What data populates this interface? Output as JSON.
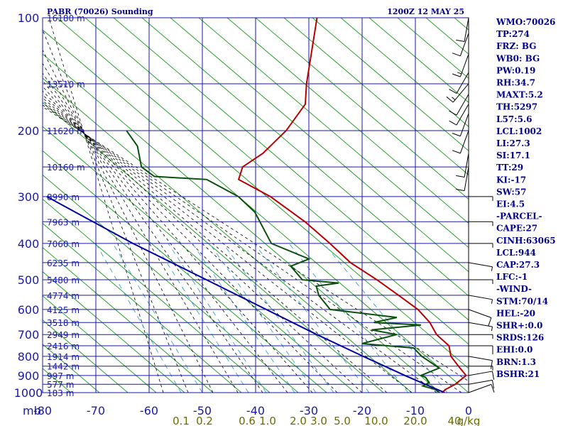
{
  "header": {
    "title": "PABR (70026) Sounding",
    "time": "1200Z 12 MAY 25"
  },
  "colors": {
    "grid": "#1a1aa8",
    "temperature": "#b80000",
    "dewpoint": "#0a500a",
    "parcel": "#0000a0",
    "dry_adiabat": "#2aa02a",
    "moist_adiabat": "#000000",
    "mixing_ratio": "#3aa0d0",
    "wind": "#000000",
    "mixing_label": "#6b6b00"
  },
  "chart_data": {
    "type": "line",
    "title": "PABR (70026) Sounding",
    "subtitle": "1200Z 12 MAY 25",
    "xlabel": "",
    "ylabel": "mb",
    "y_scale": "log",
    "ylim": [
      1000,
      100
    ],
    "xlim": [
      -80,
      0
    ],
    "pressure_ticks": [
      100,
      200,
      300,
      400,
      500,
      600,
      700,
      800,
      900,
      1000
    ],
    "temperature_ticks": [
      -80,
      -70,
      -60,
      -50,
      -40,
      -30,
      -20,
      -10,
      0
    ],
    "height_labels": [
      {
        "p": 100,
        "label": "16180 m"
      },
      {
        "p": 150,
        "label": "13510 m"
      },
      {
        "p": 200,
        "label": "11620 m"
      },
      {
        "p": 250,
        "label": "10160 m"
      },
      {
        "p": 300,
        "label": "8990 m"
      },
      {
        "p": 350,
        "label": "7963 m"
      },
      {
        "p": 400,
        "label": "7060 m"
      },
      {
        "p": 450,
        "label": "6235 m"
      },
      {
        "p": 500,
        "label": "5480 m"
      },
      {
        "p": 550,
        "label": "4774 m"
      },
      {
        "p": 600,
        "label": "4125 m"
      },
      {
        "p": 650,
        "label": "3518 m"
      },
      {
        "p": 700,
        "label": "2949 m"
      },
      {
        "p": 750,
        "label": "2416 m"
      },
      {
        "p": 800,
        "label": "1914 m"
      },
      {
        "p": 850,
        "label": "1442 m"
      },
      {
        "p": 900,
        "label": "997 m"
      },
      {
        "p": 950,
        "label": "577 m"
      },
      {
        "p": 1000,
        "label": "183 m"
      }
    ],
    "mixing_ratio_labels": [
      "0.1",
      "0.2",
      "0.6",
      "1.0",
      "2.0",
      "3.0",
      "5.0",
      "10.0",
      "20.0",
      "40",
      "g/kg"
    ],
    "series": [
      {
        "name": "temperature",
        "points": [
          {
            "p": 100,
            "t": -51
          },
          {
            "p": 150,
            "t": -49
          },
          {
            "p": 170,
            "t": -48
          },
          {
            "p": 200,
            "t": -50
          },
          {
            "p": 230,
            "t": -53
          },
          {
            "p": 250,
            "t": -56
          },
          {
            "p": 270,
            "t": -56
          },
          {
            "p": 300,
            "t": -49
          },
          {
            "p": 350,
            "t": -41
          },
          {
            "p": 400,
            "t": -35
          },
          {
            "p": 450,
            "t": -30
          },
          {
            "p": 500,
            "t": -24
          },
          {
            "p": 550,
            "t": -19
          },
          {
            "p": 600,
            "t": -14.5
          },
          {
            "p": 650,
            "t": -11.5
          },
          {
            "p": 700,
            "t": -9.5
          },
          {
            "p": 750,
            "t": -6.5
          },
          {
            "p": 800,
            "t": -5.5
          },
          {
            "p": 850,
            "t": -3.5
          },
          {
            "p": 900,
            "t": -1.5
          },
          {
            "p": 950,
            "t": -3
          },
          {
            "p": 980,
            "t": -4.5
          },
          {
            "p": 1000,
            "t": -5
          }
        ]
      },
      {
        "name": "dewpoint",
        "points": [
          {
            "p": 200,
            "t": -80
          },
          {
            "p": 220,
            "t": -77
          },
          {
            "p": 250,
            "t": -75
          },
          {
            "p": 265,
            "t": -72
          },
          {
            "p": 270,
            "t": -62
          },
          {
            "p": 300,
            "t": -55
          },
          {
            "p": 330,
            "t": -51
          },
          {
            "p": 400,
            "t": -46
          },
          {
            "p": 440,
            "t": -38
          },
          {
            "p": 460,
            "t": -41
          },
          {
            "p": 500,
            "t": -38
          },
          {
            "p": 510,
            "t": -31
          },
          {
            "p": 520,
            "t": -35
          },
          {
            "p": 550,
            "t": -34
          },
          {
            "p": 600,
            "t": -31
          },
          {
            "p": 630,
            "t": -18
          },
          {
            "p": 650,
            "t": -22
          },
          {
            "p": 660,
            "t": -13
          },
          {
            "p": 680,
            "t": -22
          },
          {
            "p": 700,
            "t": -17
          },
          {
            "p": 740,
            "t": -23
          },
          {
            "p": 760,
            "t": -13
          },
          {
            "p": 800,
            "t": -11
          },
          {
            "p": 860,
            "t": -7
          },
          {
            "p": 900,
            "t": -10
          },
          {
            "p": 910,
            "t": -9
          },
          {
            "p": 940,
            "t": -8
          },
          {
            "p": 960,
            "t": -9
          },
          {
            "p": 980,
            "t": -6.5
          },
          {
            "p": 1000,
            "t": -5.5
          }
        ]
      },
      {
        "name": "parcel",
        "points": [
          {
            "p": 1000,
            "t": -4.5
          },
          {
            "p": 900,
            "t": -13
          },
          {
            "p": 800,
            "t": -22
          },
          {
            "p": 700,
            "t": -32
          },
          {
            "p": 600,
            "t": -43
          },
          {
            "p": 500,
            "t": -56
          },
          {
            "p": 400,
            "t": -72
          },
          {
            "p": 300,
            "t": -91
          }
        ]
      }
    ],
    "winds": [
      {
        "p": 1000,
        "dir": 70,
        "spd": 10
      },
      {
        "p": 950,
        "dir": 80,
        "spd": 10
      },
      {
        "p": 900,
        "dir": 80,
        "spd": 10
      },
      {
        "p": 850,
        "dir": 90,
        "spd": 5
      },
      {
        "p": 800,
        "dir": 100,
        "spd": 10
      },
      {
        "p": 750,
        "dir": 90,
        "spd": 10
      },
      {
        "p": 700,
        "dir": 90,
        "spd": 5
      },
      {
        "p": 650,
        "dir": 100,
        "spd": 5
      },
      {
        "p": 600,
        "dir": 110,
        "spd": 10
      },
      {
        "p": 550,
        "dir": 100,
        "spd": 5
      },
      {
        "p": 500,
        "dir": 90,
        "spd": 5
      },
      {
        "p": 450,
        "dir": 100,
        "spd": 5
      },
      {
        "p": 400,
        "dir": 90,
        "spd": 5
      },
      {
        "p": 350,
        "dir": 90,
        "spd": 5
      },
      {
        "p": 300,
        "dir": 90,
        "spd": 5
      },
      {
        "p": 250,
        "dir": 190,
        "spd": 10
      },
      {
        "p": 230,
        "dir": 190,
        "spd": 10
      },
      {
        "p": 200,
        "dir": 200,
        "spd": 10
      },
      {
        "p": 180,
        "dir": 200,
        "spd": 10
      },
      {
        "p": 170,
        "dir": 210,
        "spd": 10
      },
      {
        "p": 160,
        "dir": 210,
        "spd": 10
      },
      {
        "p": 150,
        "dir": 220,
        "spd": 15
      },
      {
        "p": 140,
        "dir": 210,
        "spd": 10
      },
      {
        "p": 125,
        "dir": 200,
        "spd": 15
      },
      {
        "p": 110,
        "dir": 200,
        "spd": 10
      },
      {
        "p": 100,
        "dir": 190,
        "spd": 10
      }
    ]
  },
  "indices": [
    "WMO:70026",
    "TP:274",
    "FRZ: BG",
    "WB0: BG",
    "PW:0.19",
    "RH:34.7",
    "MAXT:5.2",
    "TH:5297",
    "L57:5.6",
    "LCL:1002",
    "LI:27.3",
    "SI:17.1",
    "TT:29",
    "KI:-17",
    "SW:57",
    "EI:4.5",
    "-PARCEL-",
    "CAPE:27",
    "CINH:63065",
    "LCL:944",
    "CAP:27.3",
    "LFC:-1",
    "-WIND-",
    "STM:70/14",
    "HEL:-20",
    "SHR+:0.0",
    "SRDS:126",
    "EHI:0.0",
    "BRN:1.3",
    "BSHR:21"
  ]
}
